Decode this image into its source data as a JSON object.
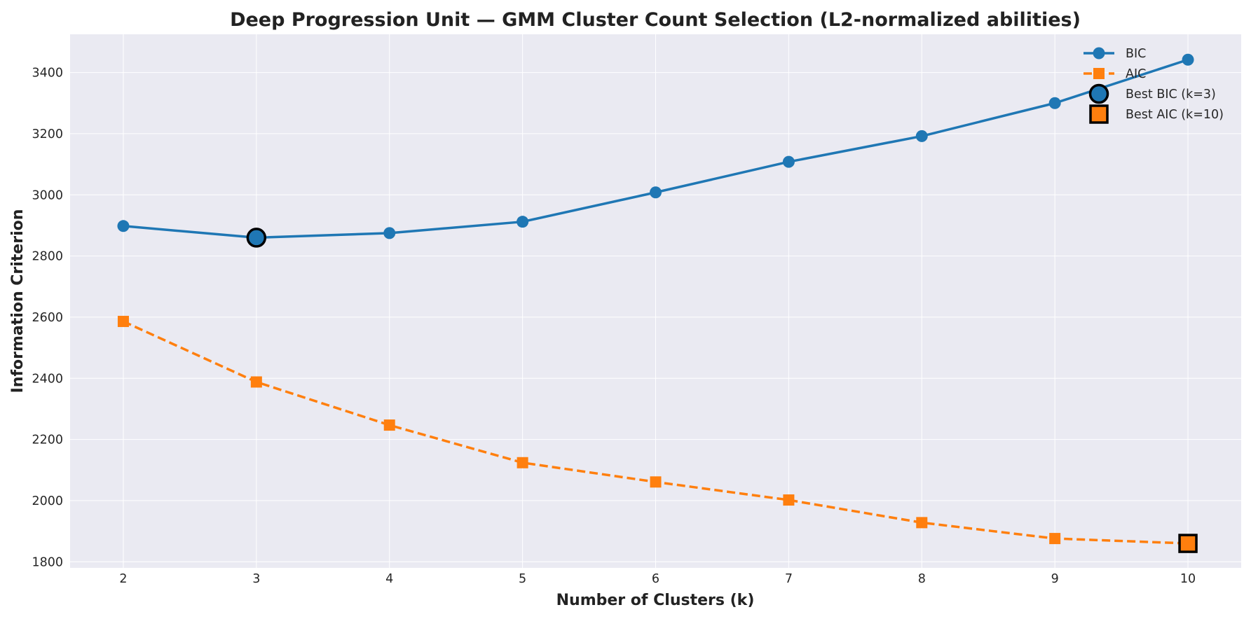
{
  "chart_data": {
    "type": "line",
    "title": "Deep Progression Unit — GMM Cluster Count Selection (L2-normalized abilities)",
    "xlabel": "Number of Clusters (k)",
    "ylabel": "Information Criterion",
    "x": [
      2,
      3,
      4,
      5,
      6,
      7,
      8,
      9,
      10
    ],
    "xlim": [
      1.6,
      10.4
    ],
    "ylim": [
      1780,
      3525
    ],
    "xticks": [
      2,
      3,
      4,
      5,
      6,
      7,
      8,
      9,
      10
    ],
    "yticks": [
      1800,
      2000,
      2200,
      2400,
      2600,
      2800,
      3000,
      3200,
      3400
    ],
    "grid": true,
    "legend_position": "top-right",
    "series": [
      {
        "name": "BIC",
        "values": [
          2898,
          2860,
          2875,
          2912,
          3008,
          3108,
          3192,
          3300,
          3442
        ],
        "color": "#1f77b4",
        "marker": "circle",
        "line_style": "solid"
      },
      {
        "name": "AIC",
        "values": [
          2586,
          2388,
          2247,
          2124,
          2061,
          2002,
          1928,
          1876,
          1860
        ],
        "color": "#ff7f0e",
        "marker": "square",
        "line_style": "dashed"
      }
    ],
    "highlights": [
      {
        "name": "Best BIC (k=3)",
        "series": "BIC",
        "x": 3,
        "y": 2860,
        "marker": "circle",
        "color": "#1f77b4",
        "edge_color": "#000000"
      },
      {
        "name": "Best AIC (k=10)",
        "series": "AIC",
        "x": 10,
        "y": 1860,
        "marker": "square",
        "color": "#ff7f0e",
        "edge_color": "#000000"
      }
    ],
    "plot_background": "#eaeaf2",
    "grid_color": "#ffffff"
  }
}
